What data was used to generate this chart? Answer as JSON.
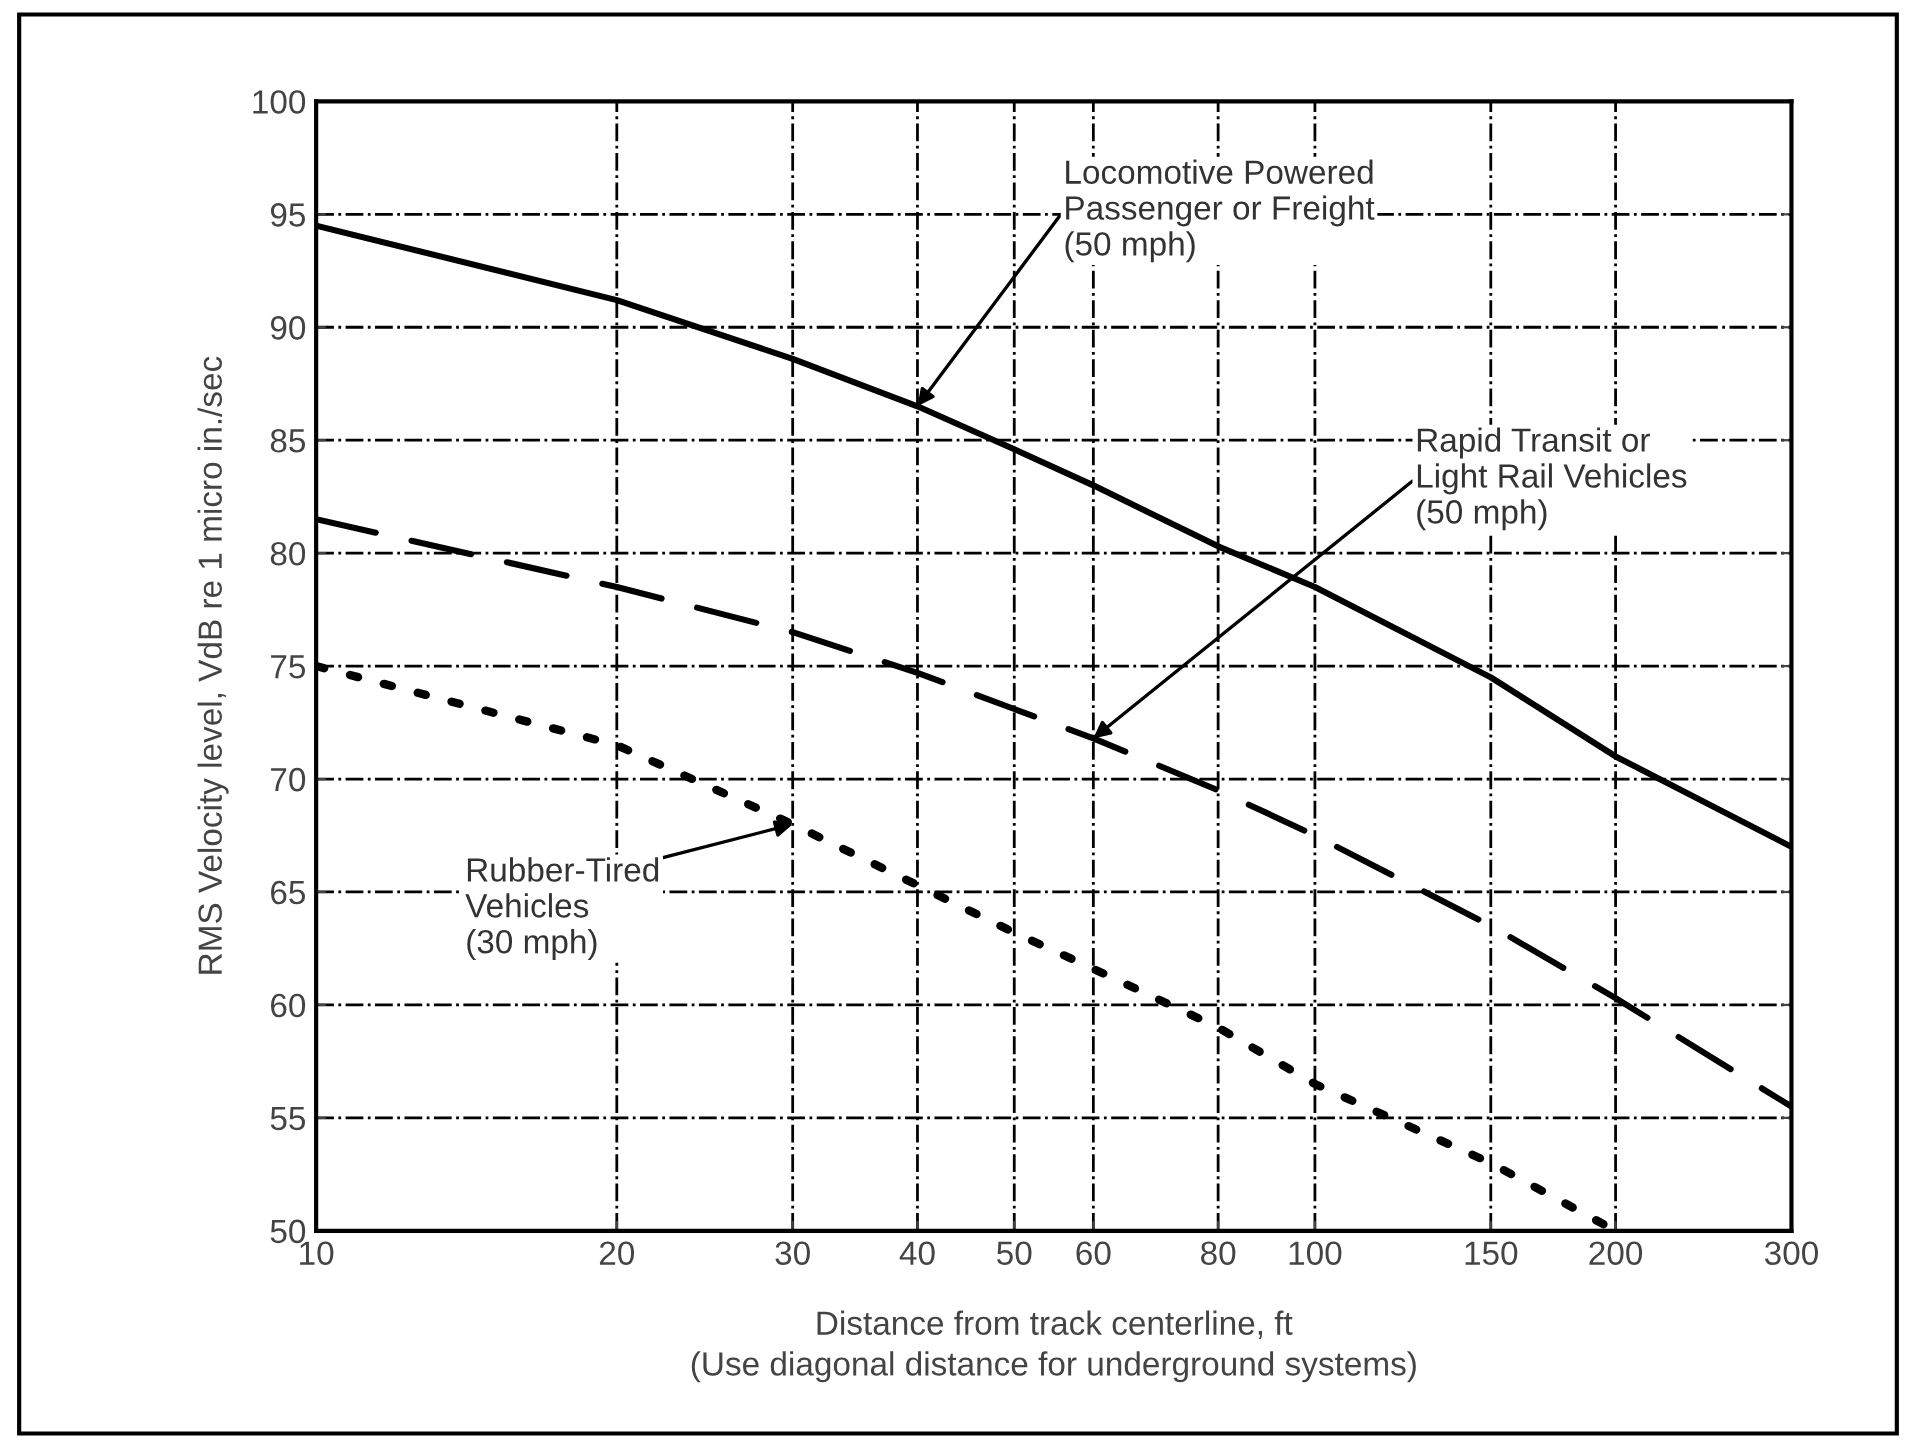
{
  "chart_data": {
    "type": "line",
    "xlabel": "Distance from track centerline, ft\n(Use diagonal distance for underground systems)",
    "ylabel": "RMS Velocity level, VdB re 1 micro in./sec",
    "log": "x",
    "xlim": [
      10,
      300
    ],
    "xticks": [
      10,
      20,
      30,
      40,
      50,
      60,
      80,
      100,
      150,
      200,
      300
    ],
    "ylim": [
      50,
      100
    ],
    "yticks": [
      50,
      55,
      60,
      65,
      70,
      75,
      80,
      85,
      90,
      95,
      100
    ],
    "grid": true,
    "legend": false,
    "x": [
      10,
      20,
      30,
      40,
      50,
      60,
      80,
      100,
      150,
      200,
      300
    ],
    "series": [
      {
        "color": "#000000",
        "line_style": "solid",
        "values": [
          94.5,
          91.2,
          88.6,
          86.5,
          84.6,
          83.0,
          80.3,
          78.5,
          74.5,
          71.0,
          67.0
        ]
      },
      {
        "color": "#000000",
        "line_style": "dashed",
        "values": [
          81.5,
          78.5,
          76.5,
          74.7,
          73.1,
          71.8,
          69.5,
          67.5,
          63.5,
          60.3,
          55.5
        ]
      },
      {
        "color": "#000000",
        "line_style": "dotted",
        "values": [
          75.0,
          71.5,
          68.0,
          65.3,
          63.2,
          61.6,
          59.0,
          56.5,
          53.0,
          50.0,
          null
        ]
      }
    ],
    "annotations": [
      {
        "text": "Locomotive Powered\nPassenger or Freight\n(50 mph)",
        "x": 40,
        "y": 86.5
      },
      {
        "text": "Rapid Transit or\nLight Rail Vehicles\n(50 mph)",
        "x": 60,
        "y": 71.8
      },
      {
        "text": "Rubber-Tired\nVehicles\n(30 mph)",
        "x": 30,
        "y": 68.0
      }
    ]
  }
}
